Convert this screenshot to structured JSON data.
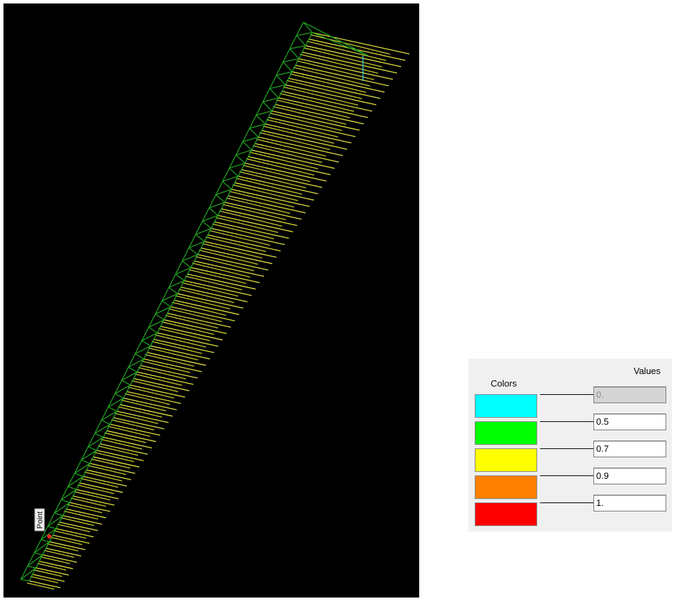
{
  "viewport": {
    "point_label": "Point"
  },
  "legend": {
    "colors_header": "Colors",
    "values_header": "Values",
    "swatch_colors": [
      "#00ffff",
      "#00ff00",
      "#ffff00",
      "#ff8000",
      "#ff0000"
    ],
    "values": [
      "0.",
      "0.5",
      "0.7",
      "0.9",
      "1."
    ]
  }
}
